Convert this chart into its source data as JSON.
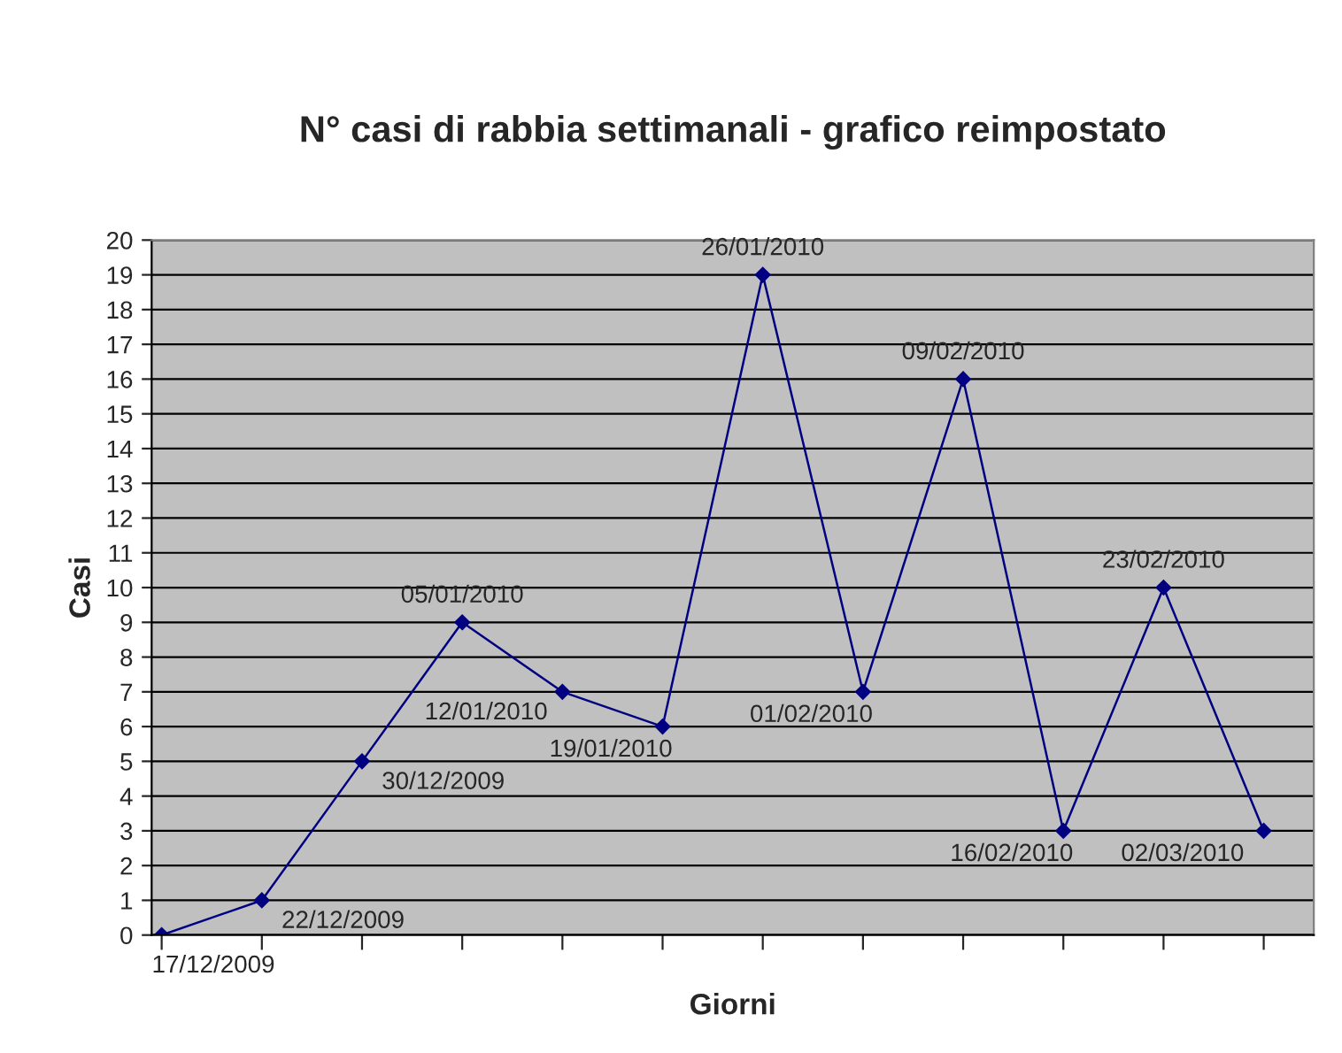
{
  "chart_data": {
    "type": "line",
    "title": "N° casi di rabbia settimanali - grafico reimpostato",
    "xlabel": "Giorni",
    "ylabel": "Casi",
    "categories": [
      null,
      null,
      null,
      null,
      null,
      null,
      null,
      null,
      null,
      null,
      null,
      null
    ],
    "series": [
      {
        "color": "#000080",
        "values": [
          0,
          1,
          5,
          9,
          7,
          6,
          19,
          7,
          16,
          3,
          10,
          3
        ]
      }
    ],
    "marker": "diamond",
    "line_style": "solid",
    "grid": "y",
    "legend": false,
    "ylim": [
      0,
      20
    ],
    "yticks": [
      0,
      1,
      2,
      3,
      4,
      5,
      6,
      7,
      8,
      9,
      10,
      11,
      12,
      13,
      14,
      15,
      16,
      17,
      18,
      19,
      20
    ],
    "annotations": [
      "17/12/2009",
      "22/12/2009",
      "30/12/2009",
      "05/01/2010",
      "12/01/2010",
      "19/01/2010",
      "26/01/2010",
      "01/02/2010",
      "09/02/2010",
      "16/02/2010",
      "23/02/2010",
      "02/03/2010"
    ]
  }
}
